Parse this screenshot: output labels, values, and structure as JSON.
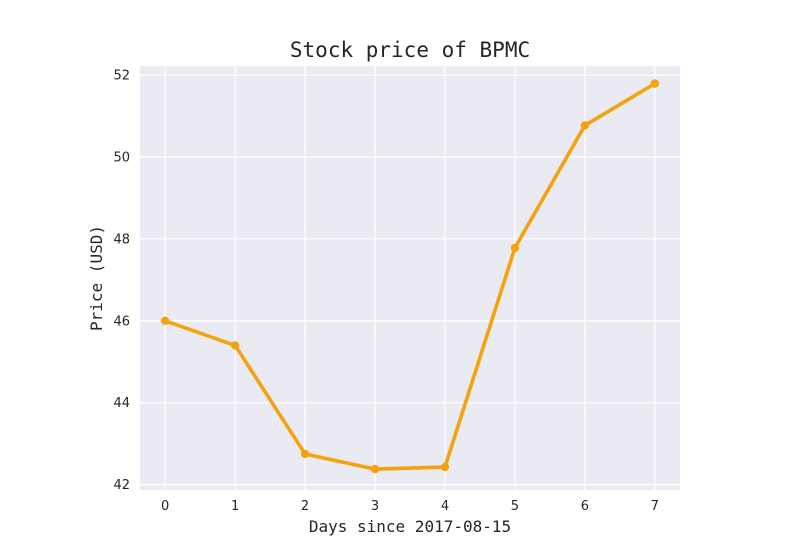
{
  "chart_data": {
    "type": "line",
    "title": "Stock price of BPMC",
    "xlabel": "Days since 2017-08-15",
    "ylabel": "Price (USD)",
    "x": [
      0,
      1,
      2,
      3,
      4,
      5,
      6,
      7
    ],
    "series": [
      {
        "values": [
          46.0,
          45.4,
          42.75,
          42.38,
          42.43,
          47.78,
          50.77,
          51.79
        ]
      }
    ],
    "xticks": [
      0,
      1,
      2,
      3,
      4,
      5,
      6,
      7
    ],
    "yticks": [
      42,
      44,
      46,
      48,
      50,
      52
    ],
    "xlim": [
      -0.36,
      7.36
    ],
    "ylim": [
      41.87,
      52.22
    ],
    "grid": true,
    "colors": {
      "line": "#f5a20f",
      "plot_bg": "#eaeaf2",
      "grid": "#ffffff"
    }
  }
}
